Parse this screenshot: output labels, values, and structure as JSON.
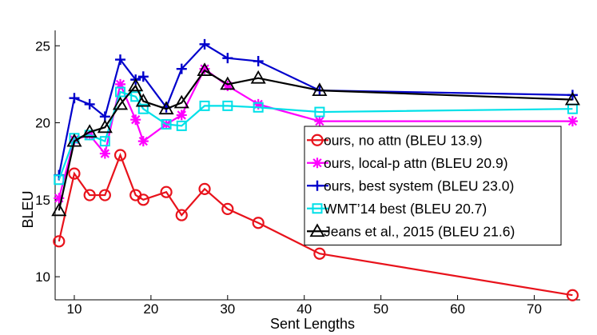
{
  "chart_data": {
    "type": "line",
    "title": "",
    "xlabel": "Sent Lengths",
    "ylabel": "BLEU",
    "xlim": [
      7.5,
      76
    ],
    "ylim": [
      8.5,
      26
    ],
    "xticks": [
      10,
      20,
      30,
      40,
      50,
      60,
      70
    ],
    "yticks": [
      10,
      15,
      20,
      25
    ],
    "grid": false,
    "legend_position": "center-right",
    "series": [
      {
        "name": "ours, no attn (BLEU 13.9)",
        "color": "#e8121b",
        "marker": "circle",
        "x": [
          8,
          10,
          12,
          14,
          16,
          18,
          19,
          22,
          24,
          27,
          30,
          34,
          42,
          75
        ],
        "y": [
          12.3,
          16.7,
          15.3,
          15.3,
          17.9,
          15.3,
          15.0,
          15.5,
          14.0,
          15.7,
          14.4,
          13.5,
          11.5,
          8.8
        ]
      },
      {
        "name": "ours, local-p attn (BLEU 20.9)",
        "color": "#ff00ff",
        "marker": "asterisk",
        "x": [
          8,
          10,
          12,
          14,
          16,
          18,
          19,
          22,
          24,
          27,
          30,
          34,
          42,
          75
        ],
        "y": [
          15.1,
          18.9,
          19.2,
          18.0,
          22.5,
          20.2,
          18.8,
          19.9,
          20.5,
          23.5,
          22.4,
          21.2,
          20.1,
          20.1
        ]
      },
      {
        "name": "ours, best system (BLEU 23.0)",
        "color": "#0000cc",
        "marker": "plus",
        "x": [
          8,
          10,
          12,
          14,
          16,
          18,
          19,
          22,
          24,
          27,
          30,
          34,
          42,
          75
        ],
        "y": [
          16.6,
          21.6,
          21.2,
          20.4,
          24.1,
          22.8,
          23.0,
          21.0,
          23.5,
          25.1,
          24.2,
          24.0,
          22.1,
          21.8
        ]
      },
      {
        "name": "WMT’14 best (BLEU 20.7)",
        "color": "#00e0e8",
        "marker": "square",
        "x": [
          8,
          10,
          12,
          14,
          16,
          18,
          19,
          22,
          24,
          27,
          30,
          34,
          42,
          75
        ],
        "y": [
          16.3,
          19.0,
          19.2,
          18.8,
          22.0,
          21.7,
          20.9,
          19.9,
          19.8,
          21.1,
          21.1,
          21.0,
          20.7,
          20.9
        ]
      },
      {
        "name": "Jeans et al., 2015 (BLEU 21.6)",
        "color": "#000000",
        "marker": "triangle",
        "x": [
          8,
          10,
          12,
          14,
          16,
          18,
          19,
          22,
          24,
          27,
          30,
          34,
          42,
          75
        ],
        "y": [
          14.3,
          18.8,
          19.4,
          19.7,
          21.2,
          22.4,
          21.4,
          20.9,
          21.3,
          23.4,
          22.5,
          22.9,
          22.1,
          21.5
        ]
      }
    ]
  }
}
